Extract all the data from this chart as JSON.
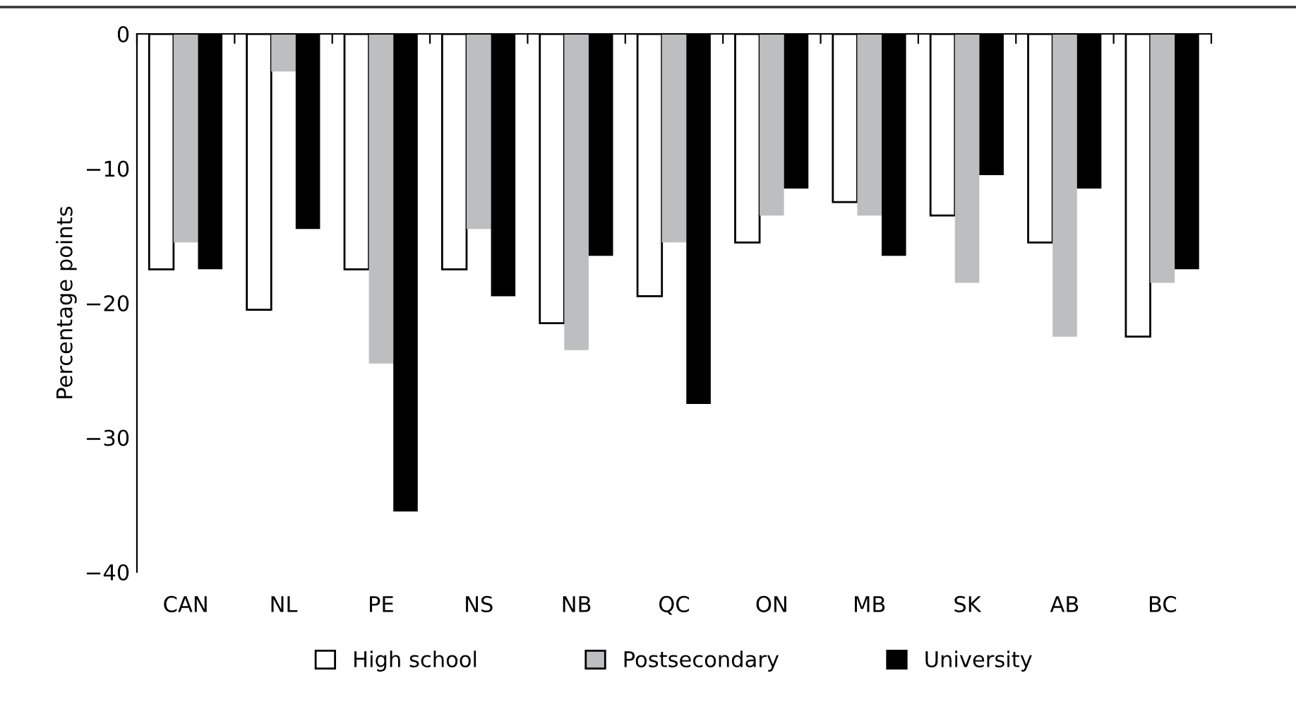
{
  "chart_data": {
    "type": "bar",
    "ylabel": "Percentage points",
    "categories": [
      "CAN",
      "NL",
      "PE",
      "NS",
      "NB",
      "QC",
      "ON",
      "MB",
      "SK",
      "AB",
      "BC"
    ],
    "series": [
      {
        "name": "High school",
        "color": "#ffffff",
        "values": [
          -17.5,
          -20.5,
          -17.5,
          -17.5,
          -21.5,
          -19.5,
          -15.5,
          -12.5,
          -13.5,
          -15.5,
          -22.5
        ]
      },
      {
        "name": "Postsecondary",
        "color": "#bdbec0",
        "values": [
          -15.5,
          -2.8,
          -24.5,
          -14.5,
          -23.5,
          -15.5,
          -13.5,
          -13.5,
          -18.5,
          -22.5,
          -18.5
        ]
      },
      {
        "name": "University",
        "color": "#000000",
        "values": [
          -17.5,
          -14.5,
          -35.5,
          -19.5,
          -16.5,
          -27.5,
          -11.5,
          -16.5,
          -10.5,
          -11.5,
          -17.5
        ]
      }
    ],
    "ylim": [
      -40,
      0
    ],
    "yticks": [
      0,
      {
        "value": -10,
        "label": "−10"
      },
      {
        "value": -20,
        "label": "−20"
      },
      {
        "value": -30,
        "label": "−30"
      },
      {
        "value": -40,
        "label": "−40"
      }
    ],
    "grid": false,
    "legend": "bottom"
  }
}
